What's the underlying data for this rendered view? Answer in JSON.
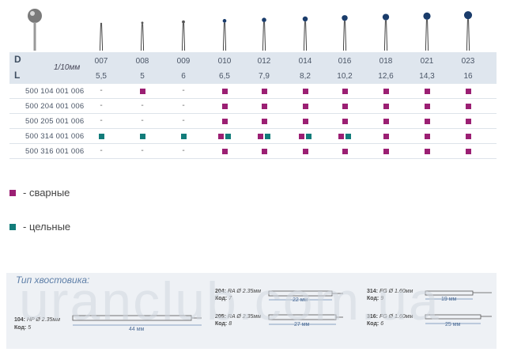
{
  "header": {
    "row_d": "D",
    "row_l": "L",
    "unit": "1/10мм"
  },
  "sizes": [
    {
      "d": "007",
      "l": "5,5"
    },
    {
      "d": "008",
      "l": "5"
    },
    {
      "d": "009",
      "l": "6"
    },
    {
      "d": "010",
      "l": "6,5"
    },
    {
      "d": "012",
      "l": "7,9"
    },
    {
      "d": "014",
      "l": "8,2"
    },
    {
      "d": "016",
      "l": "10,2"
    },
    {
      "d": "018",
      "l": "12,6"
    },
    {
      "d": "021",
      "l": "14,3"
    },
    {
      "d": "023",
      "l": "16"
    }
  ],
  "rows": [
    {
      "code": "500 104 001 006",
      "cells": [
        "-",
        "M",
        "-",
        "M",
        "M",
        "M",
        "M",
        "M",
        "M",
        "M"
      ]
    },
    {
      "code": "500 204 001 006",
      "cells": [
        "-",
        "-",
        "-",
        "M",
        "M",
        "M",
        "M",
        "M",
        "M",
        "M"
      ]
    },
    {
      "code": "500 205 001 006",
      "cells": [
        "-",
        "-",
        "-",
        "M",
        "M",
        "M",
        "M",
        "M",
        "M",
        "M"
      ]
    },
    {
      "code": "500 314 001 006",
      "cells": [
        "T",
        "T",
        "T",
        "MT",
        "MT",
        "MT",
        "MT",
        "M",
        "M",
        "M"
      ]
    },
    {
      "code": "500 316 001 006",
      "cells": [
        "-",
        "-",
        "-",
        "M",
        "M",
        "M",
        "M",
        "M",
        "M",
        "M"
      ]
    }
  ],
  "legend": [
    {
      "label": "- сварные",
      "color": "#9b1f73"
    },
    {
      "label": "- цельные",
      "color": "#127c7a"
    }
  ],
  "colors": {
    "welded": "#9b1f73",
    "solid": "#127c7a",
    "title": "#5e7fa8"
  },
  "shank": {
    "title": "Тип хвостовика:",
    "items": [
      {
        "type": "104:",
        "spec": "HP Ø 2.35мм",
        "code_label": "Код:",
        "code": "5",
        "length": "44 мм"
      },
      {
        "type": "204:",
        "spec": "RA Ø 2.35мм",
        "code_label": "Код:",
        "code": "7",
        "length": "22 мм"
      },
      {
        "type": "205:",
        "spec": "RA Ø 2.35мм",
        "code_label": "Код:",
        "code": "8",
        "length": "27 мм"
      },
      {
        "type": "314:",
        "spec": "FG Ø 1.60мм",
        "code_label": "Код:",
        "code": "9",
        "length": "19 мм"
      },
      {
        "type": "316:",
        "spec": "FG Ø 1.60мм",
        "code_label": "Код:",
        "code": "6",
        "length": "25 мм"
      }
    ]
  },
  "watermark": "uranclub.com.ua"
}
